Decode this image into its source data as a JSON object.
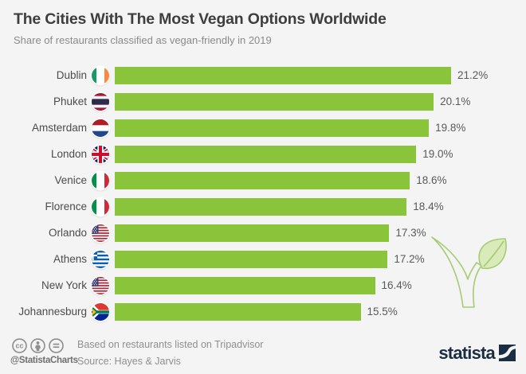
{
  "header": {
    "title": "The Cities With The Most Vegan Options Worldwide",
    "subtitle": "Share of restaurants classified as vegan-friendly in 2019"
  },
  "chart_data": {
    "type": "bar",
    "orientation": "horizontal",
    "title": "The Cities With The Most Vegan Options Worldwide",
    "subtitle": "Share of restaurants classified as vegan-friendly in 2019",
    "unit": "percent",
    "xlim": [
      0,
      21.2
    ],
    "grid": false,
    "legend": false,
    "bar_color": "#8AC43B",
    "categories": [
      "Dublin",
      "Phuket",
      "Amsterdam",
      "London",
      "Venice",
      "Florence",
      "Orlando",
      "Athens",
      "New York",
      "Johannesburg"
    ],
    "values": [
      21.2,
      20.1,
      19.8,
      19.0,
      18.6,
      18.4,
      17.3,
      17.2,
      16.4,
      15.5
    ],
    "rows": [
      {
        "label": "Dublin",
        "flag": "ireland-flag-icon",
        "value": 21.2,
        "value_label": "21.2%"
      },
      {
        "label": "Phuket",
        "flag": "thailand-flag-icon",
        "value": 20.1,
        "value_label": "20.1%"
      },
      {
        "label": "Amsterdam",
        "flag": "netherlands-flag-icon",
        "value": 19.8,
        "value_label": "19.8%"
      },
      {
        "label": "London",
        "flag": "uk-flag-icon",
        "value": 19.0,
        "value_label": "19.0%"
      },
      {
        "label": "Venice",
        "flag": "italy-flag-icon",
        "value": 18.6,
        "value_label": "18.6%"
      },
      {
        "label": "Florence",
        "flag": "italy-flag-icon",
        "value": 18.4,
        "value_label": "18.4%"
      },
      {
        "label": "Orlando",
        "flag": "usa-flag-icon",
        "value": 17.3,
        "value_label": "17.3%"
      },
      {
        "label": "Athens",
        "flag": "greece-flag-icon",
        "value": 17.2,
        "value_label": "17.2%"
      },
      {
        "label": "New York",
        "flag": "usa-flag-icon",
        "value": 16.4,
        "value_label": "16.4%"
      },
      {
        "label": "Johannesburg",
        "flag": "south-africa-flag-icon",
        "value": 15.5,
        "value_label": "15.5%"
      }
    ]
  },
  "decor": {
    "icon": "vegan-leaf-check-icon"
  },
  "footer": {
    "license_icons": [
      "cc-icon",
      "attribution-person-icon",
      "no-derivatives-icon"
    ],
    "handle": "@StatistaCharts",
    "note": "Based on restaurants listed on Tripadvisor",
    "source": "Source: Hayes & Jarvis",
    "brand": "statista"
  },
  "colors": {
    "background": "#F4F4F4",
    "bar_green": "#8AC43B",
    "title_text": "#3E3E3E",
    "subtitle_text": "#8A8A8A",
    "label_text": "#4B4B4B",
    "value_text": "#595959",
    "footer_text": "#8F8F8F",
    "brand_navy": "#1B2D42",
    "decor_stroke": "#A6CB73",
    "decor_fill": "#D9EABB"
  }
}
